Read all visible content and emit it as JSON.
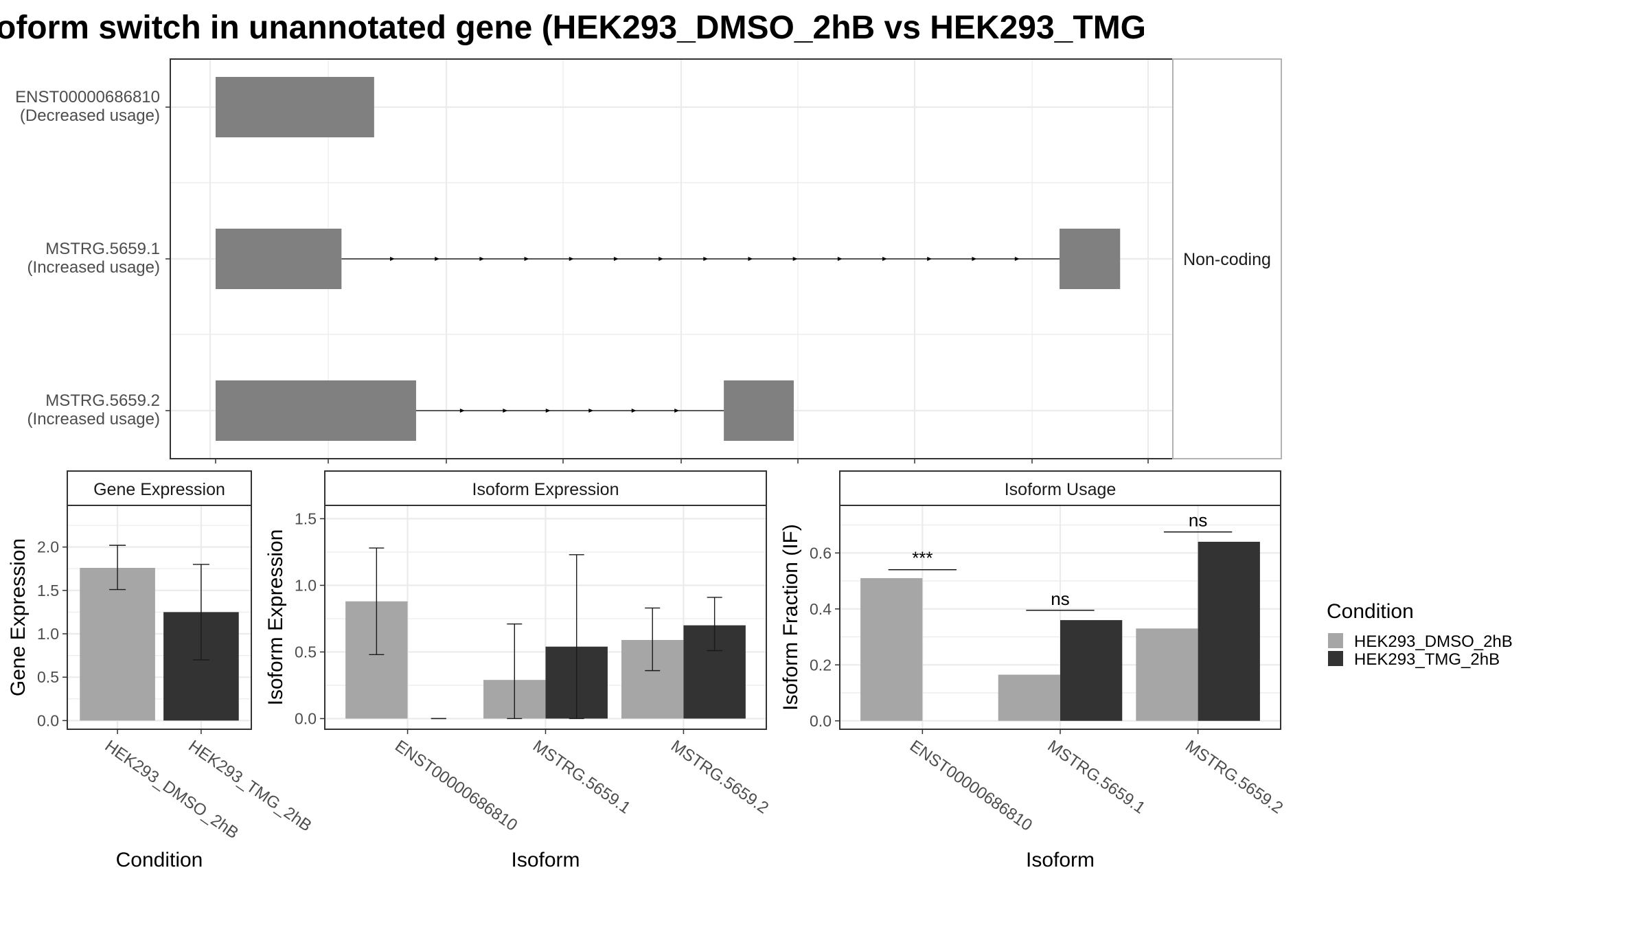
{
  "title": "oform switch in unannotated gene (HEK293_DMSO_2hB vs HEK293_TMG",
  "colors": {
    "structure": "#808080",
    "dmso": "#a6a6a6",
    "tmg": "#333333",
    "strip_bg": "#ffffff",
    "grid": "#ebebeb"
  },
  "structure": {
    "strip_label": "Non-coding",
    "isoforms": [
      {
        "name": "ENST00000686810",
        "note": "(Decreased usage)",
        "exons": [
          [
            0.0,
            0.17
          ]
        ],
        "arrow_ticks": []
      },
      {
        "name": "MSTRG.5659.1",
        "note": "(Increased usage)",
        "exons": [
          [
            0.0,
            0.135
          ],
          [
            0.905,
            0.97
          ]
        ],
        "arrow_ticks": [
          0.19,
          0.238,
          0.286,
          0.334,
          0.382,
          0.43,
          0.478,
          0.526,
          0.574,
          0.622,
          0.67,
          0.718,
          0.766,
          0.814,
          0.86
        ]
      },
      {
        "name": "MSTRG.5659.2",
        "note": "(Increased usage)",
        "exons": [
          [
            0.0,
            0.215
          ],
          [
            0.545,
            0.62
          ]
        ],
        "arrow_ticks": [
          0.265,
          0.311,
          0.357,
          0.403,
          0.449,
          0.495
        ]
      }
    ]
  },
  "chart_data": [
    {
      "type": "bar",
      "title": "Gene Expression",
      "xlabel": "Condition",
      "ylabel": "Gene Expression",
      "categories": [
        "HEK293_DMSO_2hB",
        "HEK293_TMG_2hB"
      ],
      "values": [
        1.76,
        1.25
      ],
      "error": [
        [
          1.51,
          2.02
        ],
        [
          0.7,
          1.8
        ]
      ],
      "colors": [
        "#a6a6a6",
        "#333333"
      ],
      "ylim": [
        -0.1,
        2.48
      ],
      "yticks": [
        "0.0",
        "0.5",
        "1.0",
        "1.5",
        "2.0"
      ],
      "grid": true
    },
    {
      "type": "bar",
      "title": "Isoform Expression",
      "xlabel": "Isoform",
      "ylabel": "Isoform Expression",
      "categories": [
        "ENST00000686810",
        "MSTRG.5659.1",
        "MSTRG.5659.2"
      ],
      "series": [
        {
          "name": "HEK293_DMSO_2hB",
          "values": [
            0.88,
            0.29,
            0.59
          ],
          "error": [
            [
              0.48,
              1.28
            ],
            [
              0.0,
              0.71
            ],
            [
              0.36,
              0.83
            ]
          ]
        },
        {
          "name": "HEK293_TMG_2hB",
          "values": [
            0.0,
            0.54,
            0.7
          ],
          "error": [
            [
              0.0,
              0.0
            ],
            [
              0.0,
              1.23
            ],
            [
              0.51,
              0.91
            ]
          ]
        }
      ],
      "ylim": [
        -0.08,
        1.6
      ],
      "yticks": [
        "0.0",
        "0.5",
        "1.0",
        "1.5"
      ],
      "grid": true
    },
    {
      "type": "bar",
      "title": "Isoform Usage",
      "xlabel": "Isoform",
      "ylabel": "Isoform Fraction (IF)",
      "categories": [
        "ENST00000686810",
        "MSTRG.5659.1",
        "MSTRG.5659.2"
      ],
      "series": [
        {
          "name": "HEK293_DMSO_2hB",
          "values": [
            0.51,
            0.165,
            0.33
          ]
        },
        {
          "name": "HEK293_TMG_2hB",
          "values": [
            0.0,
            0.36,
            0.64
          ]
        }
      ],
      "significance": [
        "***",
        "ns",
        "ns"
      ],
      "sig_level": [
        0.54,
        0.395,
        0.675
      ],
      "ylim": [
        -0.03,
        0.77
      ],
      "yticks": [
        "0.0",
        "0.2",
        "0.4",
        "0.6"
      ],
      "grid": true
    }
  ],
  "legend": {
    "title": "Condition",
    "items": [
      {
        "label": "HEK293_DMSO_2hB",
        "color": "#a6a6a6"
      },
      {
        "label": "HEK293_TMG_2hB",
        "color": "#333333"
      }
    ]
  }
}
